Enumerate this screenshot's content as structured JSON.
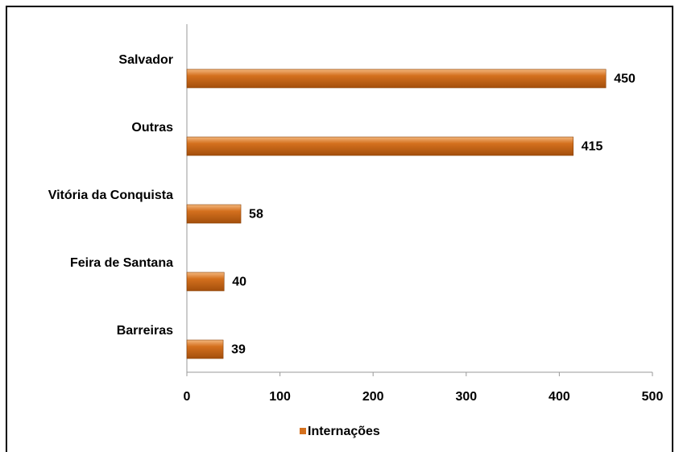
{
  "chart_data": {
    "type": "barh",
    "categories": [
      "Salvador",
      "Outras",
      "Vitória da Conquista",
      "Feira de Santana",
      "Barreiras"
    ],
    "series": [
      {
        "name": "Internações",
        "color": "#d4701e",
        "values": [
          450,
          415,
          58,
          40,
          39
        ]
      }
    ],
    "xlim": [
      0,
      500
    ],
    "xticks": [
      0,
      100,
      200,
      300,
      400,
      500
    ],
    "legend": "bottom",
    "grid": false
  }
}
